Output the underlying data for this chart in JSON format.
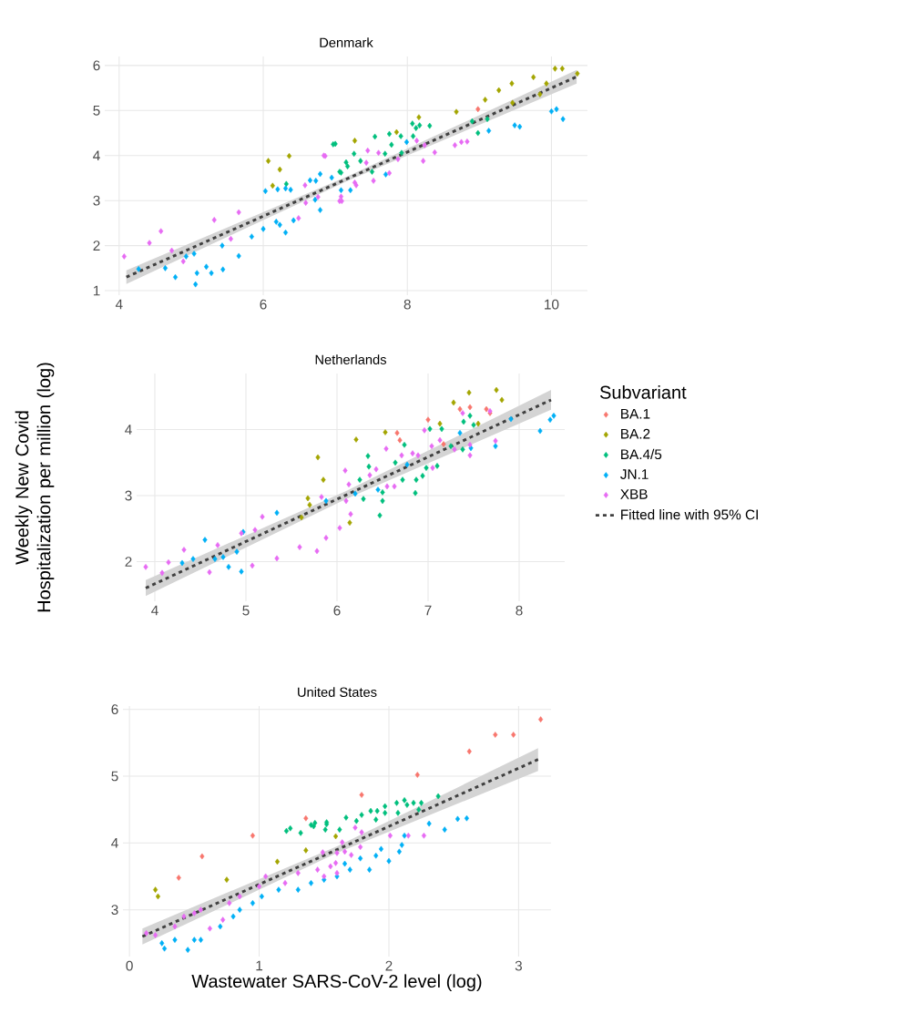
{
  "chart_data": [
    {
      "type": "scatter",
      "title": "Denmark",
      "xlim": [
        3.8,
        10.5
      ],
      "ylim": [
        0.9,
        6.2
      ],
      "xticks": [
        4,
        6,
        8,
        10
      ],
      "yticks": [
        1,
        2,
        3,
        4,
        5,
        6
      ],
      "grid": true,
      "marker": "diamond",
      "series": [
        {
          "color": "#f8766d",
          "x": [
            8.98
          ],
          "values": [
            5.03
          ]
        },
        {
          "color": "#a3a500",
          "x": [
            6.07,
            6.13,
            6.23,
            6.36,
            7.27,
            7.85,
            8.16,
            8.68,
            9.08,
            9.27,
            9.45,
            9.46,
            9.75,
            9.84,
            9.93,
            10.05,
            10.15,
            10.36
          ],
          "values": [
            3.88,
            3.33,
            3.69,
            3.99,
            4.33,
            4.52,
            4.85,
            4.97,
            5.24,
            5.45,
            5.6,
            5.17,
            5.74,
            5.36,
            5.6,
            5.93,
            5.93,
            5.82
          ]
        },
        {
          "color": "#00bf7d",
          "x": [
            6.32,
            6.97,
            7.0,
            7.06,
            7.08,
            7.15,
            7.17,
            7.26,
            7.35,
            7.51,
            7.55,
            7.69,
            7.75,
            7.78,
            7.91,
            7.92,
            8.07,
            8.08,
            8.12,
            8.17,
            8.31,
            8.9,
            8.98,
            9.11
          ],
          "values": [
            3.37,
            4.25,
            4.26,
            3.64,
            3.62,
            3.85,
            3.76,
            4.04,
            3.88,
            3.64,
            4.42,
            4.04,
            4.48,
            4.24,
            4.43,
            4.06,
            4.71,
            4.43,
            4.61,
            4.67,
            4.66,
            4.76,
            4.5,
            4.81
          ]
        },
        {
          "color": "#00b0f6",
          "x": [
            4.27,
            4.64,
            4.78,
            4.93,
            5.04,
            5.06,
            5.08,
            5.21,
            5.28,
            5.43,
            5.44,
            5.66,
            5.84,
            6.0,
            6.03,
            6.18,
            6.2,
            6.23,
            6.31,
            6.31,
            6.38,
            6.42,
            6.65,
            6.72,
            6.73,
            6.79,
            6.79,
            6.95,
            7.08,
            7.21,
            7.7,
            7.99,
            9.13,
            9.49,
            9.56,
            10.0,
            10.07,
            10.16
          ],
          "values": [
            1.48,
            1.5,
            1.3,
            1.76,
            1.82,
            1.14,
            1.39,
            1.53,
            1.39,
            2.0,
            1.47,
            1.77,
            2.2,
            2.37,
            3.21,
            2.53,
            3.25,
            2.46,
            2.29,
            3.27,
            3.24,
            2.56,
            3.45,
            3.02,
            3.44,
            3.59,
            2.79,
            3.51,
            3.23,
            3.23,
            3.58,
            4.3,
            4.55,
            4.67,
            4.64,
            4.98,
            5.03,
            4.81
          ]
        },
        {
          "color": "#e76bf3",
          "x": [
            4.07,
            4.42,
            4.58,
            4.73,
            4.89,
            5.32,
            5.55,
            5.66,
            6.49,
            6.58,
            6.59,
            6.76,
            6.84,
            6.86,
            7.06,
            7.08,
            7.09,
            7.27,
            7.29,
            7.43,
            7.45,
            7.53,
            7.6,
            7.75,
            7.87,
            8.13,
            8.22,
            8.24,
            8.38,
            8.66,
            8.75,
            8.83
          ],
          "values": [
            1.76,
            2.06,
            2.32,
            1.89,
            1.65,
            2.57,
            2.15,
            2.74,
            2.61,
            3.34,
            2.95,
            3.08,
            4.0,
            3.99,
            2.99,
            3.09,
            2.99,
            3.4,
            3.34,
            3.84,
            4.11,
            3.44,
            4.06,
            3.61,
            3.92,
            4.33,
            3.88,
            4.23,
            4.07,
            4.23,
            4.3,
            4.31
          ]
        },
        {
          "type": "line",
          "color": "#404040",
          "line_style": "dashed",
          "marker": "none",
          "x": [
            4.1,
            7.2,
            10.35
          ],
          "values": [
            1.3,
            3.51,
            5.75
          ],
          "lower": [
            1.15,
            3.46,
            5.6
          ],
          "upper": [
            1.45,
            3.56,
            5.9
          ]
        }
      ]
    },
    {
      "type": "scatter",
      "title": "Netherlands",
      "ylabel": "Weekly New Covid Hospitalization per million (log)",
      "xlim": [
        3.8,
        8.5
      ],
      "ylim": [
        1.4,
        4.85
      ],
      "xticks": [
        4,
        5,
        6,
        7,
        8
      ],
      "yticks": [
        2,
        3,
        4
      ],
      "grid": true,
      "marker": "diamond",
      "legend": "right",
      "legend_title": "Subvariant",
      "series": [
        {
          "name": "BA.1",
          "color": "#f8766d",
          "x": [
            6.66,
            6.69,
            7.0,
            7.17,
            7.35,
            7.46,
            7.64,
            7.68
          ],
          "values": [
            3.95,
            3.84,
            4.15,
            3.78,
            4.31,
            4.34,
            4.31,
            4.25
          ]
        },
        {
          "name": "BA.2",
          "color": "#a3a500",
          "x": [
            5.61,
            5.68,
            5.7,
            5.79,
            5.85,
            6.14,
            6.21,
            6.53,
            7.13,
            7.28,
            7.45,
            7.55,
            7.75,
            7.81
          ],
          "values": [
            2.67,
            2.96,
            2.86,
            3.58,
            3.24,
            2.59,
            3.85,
            3.96,
            4.09,
            4.41,
            4.56,
            4.09,
            4.6,
            4.45
          ]
        },
        {
          "name": "BA.4/5",
          "color": "#00bf7d",
          "x": [
            6.25,
            6.29,
            6.34,
            6.35,
            6.47,
            6.5,
            6.5,
            6.64,
            6.72,
            6.74,
            6.86,
            6.87,
            6.94,
            6.98,
            7.02,
            7.1,
            7.15,
            7.25,
            7.38,
            7.39,
            7.46,
            7.5
          ],
          "values": [
            3.24,
            2.95,
            3.6,
            3.44,
            2.7,
            3.05,
            2.92,
            3.5,
            3.24,
            3.77,
            3.04,
            3.24,
            3.3,
            3.42,
            4.01,
            3.45,
            4.01,
            3.75,
            3.7,
            4.12,
            4.21,
            4.07
          ]
        },
        {
          "name": "JN.1",
          "color": "#00b0f6",
          "x": [
            4.3,
            4.42,
            4.55,
            4.66,
            4.75,
            4.81,
            4.9,
            4.95,
            4.97,
            5.34,
            5.88,
            6.2,
            6.45,
            6.77,
            7.35,
            7.47,
            7.74,
            7.91,
            8.23,
            8.34,
            8.38
          ],
          "values": [
            1.98,
            2.04,
            2.33,
            2.04,
            2.07,
            1.92,
            2.15,
            1.85,
            2.45,
            2.74,
            2.92,
            3.03,
            3.09,
            3.47,
            3.95,
            3.72,
            3.75,
            4.16,
            3.98,
            4.15,
            4.21
          ]
        },
        {
          "name": "XBB",
          "color": "#e76bf3",
          "x": [
            3.9,
            4.08,
            4.15,
            4.32,
            4.6,
            4.69,
            4.95,
            5.07,
            5.1,
            5.18,
            5.34,
            5.59,
            5.78,
            5.83,
            5.88,
            6.03,
            6.09,
            6.1,
            6.13,
            6.15,
            6.36,
            6.43,
            6.54,
            6.55,
            6.63,
            6.71,
            6.83,
            6.89,
            6.96,
            7.04,
            7.05,
            7.13,
            7.29,
            7.38,
            7.46,
            7.46,
            7.68,
            7.74
          ],
          "values": [
            1.92,
            1.83,
            1.99,
            2.18,
            1.84,
            2.25,
            2.43,
            1.94,
            2.48,
            2.68,
            2.05,
            2.22,
            2.16,
            2.98,
            2.36,
            2.51,
            3.38,
            2.92,
            3.17,
            2.72,
            3.31,
            3.4,
            3.71,
            3.14,
            3.14,
            3.61,
            3.64,
            3.61,
            3.99,
            3.75,
            3.42,
            3.84,
            3.7,
            4.25,
            3.77,
            3.61,
            4.28,
            3.83
          ]
        },
        {
          "type": "line",
          "name": "Fitted line with 95% CI",
          "color": "#404040",
          "line_style": "dashed",
          "marker": "none",
          "x": [
            3.9,
            6.1,
            8.35
          ],
          "values": [
            1.6,
            3.01,
            4.45
          ],
          "lower": [
            1.48,
            2.95,
            4.3
          ],
          "upper": [
            1.72,
            3.07,
            4.6
          ]
        }
      ]
    },
    {
      "type": "scatter",
      "title": "United States",
      "xlabel": "Wastewater SARS-CoV-2 level (log)",
      "xlim": [
        -0.05,
        3.25
      ],
      "ylim": [
        2.3,
        6.05
      ],
      "xticks": [
        0,
        1,
        2,
        3
      ],
      "yticks": [
        3,
        4,
        5,
        6
      ],
      "grid": true,
      "marker": "diamond",
      "series": [
        {
          "color": "#f8766d",
          "x": [
            0.38,
            0.56,
            0.95,
            1.36,
            1.79,
            2.22,
            2.62,
            2.82,
            2.96,
            3.17
          ],
          "values": [
            3.48,
            3.8,
            4.11,
            4.37,
            4.72,
            5.02,
            5.37,
            5.62,
            5.62,
            5.85
          ]
        },
        {
          "color": "#a3a500",
          "x": [
            0.2,
            0.22,
            0.75,
            1.14,
            1.36,
            1.59
          ],
          "values": [
            3.3,
            3.2,
            3.45,
            3.72,
            3.89,
            4.1
          ]
        },
        {
          "color": "#00bf7d",
          "x": [
            1.21,
            1.24,
            1.32,
            1.4,
            1.42,
            1.43,
            1.51,
            1.52,
            1.52,
            1.62,
            1.67,
            1.75,
            1.79,
            1.86,
            1.9,
            1.91,
            1.97,
            1.97,
            2.06,
            2.07,
            2.12,
            2.14,
            2.19,
            2.23,
            2.25,
            2.38
          ],
          "values": [
            4.18,
            4.22,
            4.15,
            4.27,
            4.25,
            4.3,
            4.2,
            4.31,
            4.28,
            4.2,
            4.38,
            4.33,
            4.42,
            4.48,
            4.35,
            4.48,
            4.55,
            4.45,
            4.6,
            4.45,
            4.64,
            4.57,
            4.6,
            4.5,
            4.6,
            4.7
          ]
        },
        {
          "color": "#00b0f6",
          "x": [
            0.25,
            0.27,
            0.35,
            0.45,
            0.5,
            0.55,
            0.7,
            0.8,
            0.85,
            0.95,
            1.02,
            1.15,
            1.3,
            1.4,
            1.5,
            1.6,
            1.66,
            1.7,
            1.78,
            1.85,
            1.9,
            1.94,
            2.0,
            2.08,
            2.1,
            2.12,
            2.31,
            2.43,
            2.53,
            2.6
          ],
          "values": [
            2.5,
            2.42,
            2.55,
            2.4,
            2.55,
            2.55,
            2.75,
            2.9,
            3.0,
            3.1,
            3.2,
            3.3,
            3.3,
            3.4,
            3.45,
            3.5,
            3.69,
            3.6,
            3.77,
            3.6,
            3.81,
            3.91,
            3.73,
            3.87,
            3.97,
            4.11,
            4.29,
            4.2,
            4.36,
            4.37
          ]
        },
        {
          "color": "#e76bf3",
          "x": [
            0.13,
            0.2,
            0.35,
            0.42,
            0.5,
            0.55,
            0.62,
            0.72,
            0.77,
            0.85,
            1.0,
            1.05,
            1.2,
            1.3,
            1.45,
            1.49,
            1.5,
            1.55,
            1.59,
            1.6,
            1.6,
            1.64,
            1.66,
            1.71,
            1.74,
            1.78,
            1.79,
            2.01,
            2.15,
            2.27
          ],
          "values": [
            2.65,
            2.62,
            2.75,
            2.9,
            2.95,
            3.0,
            2.72,
            2.85,
            3.1,
            3.2,
            3.35,
            3.5,
            3.4,
            3.55,
            3.6,
            3.86,
            3.5,
            3.65,
            3.7,
            3.55,
            3.85,
            4.01,
            3.87,
            3.82,
            4.23,
            3.94,
            4.16,
            4.11,
            4.11,
            4.11
          ]
        },
        {
          "type": "line",
          "color": "#404040",
          "line_style": "dashed",
          "marker": "none",
          "x": [
            0.1,
            1.6,
            3.15
          ],
          "values": [
            2.6,
            3.9,
            5.25
          ],
          "lower": [
            2.48,
            3.85,
            5.08
          ],
          "upper": [
            2.72,
            3.95,
            5.42
          ]
        }
      ]
    }
  ]
}
